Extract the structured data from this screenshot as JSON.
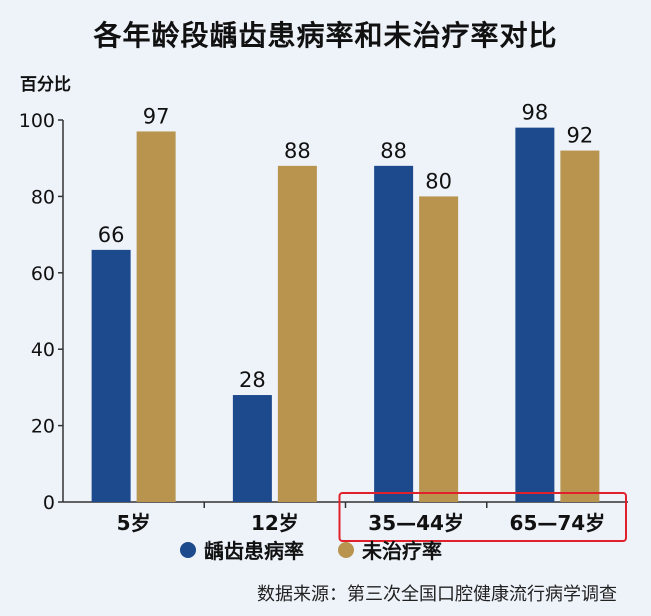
{
  "chart_data": {
    "type": "bar",
    "title": "各年龄段龋齿患病率和未治疗率对比",
    "yunit": "百分比",
    "categories": [
      "5岁",
      "12岁",
      "35—44岁",
      "65—74岁"
    ],
    "series": [
      {
        "name": "龋齿患病率",
        "color": "#1c4a8c",
        "values": [
          66,
          28,
          88,
          98
        ]
      },
      {
        "name": "未治疗率",
        "color": "#b8944f",
        "values": [
          97,
          88,
          80,
          92
        ]
      }
    ],
    "ylim": [
      0,
      100
    ],
    "yticks": [
      0,
      20,
      40,
      60,
      80,
      100
    ],
    "highlight": [
      "35—44岁",
      "65—74岁"
    ],
    "highlight_color": "#e0202a",
    "source": "数据来源：第三次全国口腔健康流行病学调查"
  }
}
